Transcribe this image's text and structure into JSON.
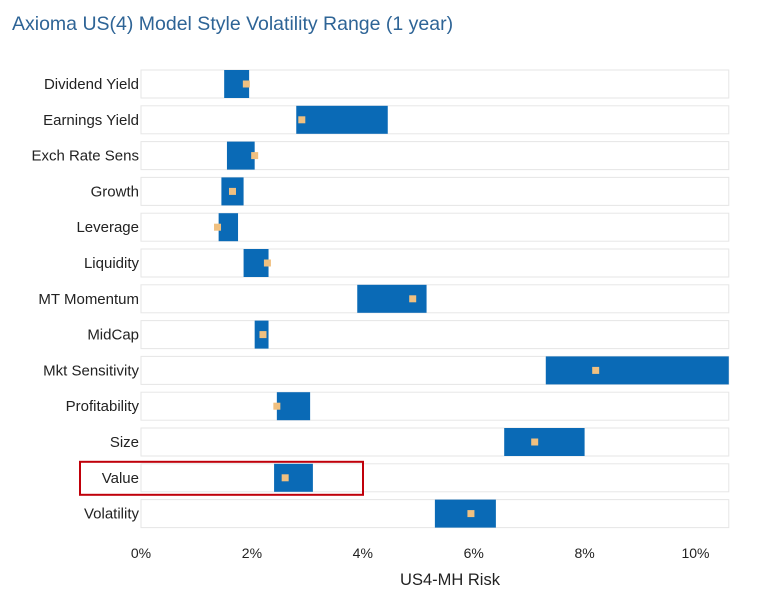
{
  "title": "Axioma US(4) Model Style Volatility Range (1 year)",
  "chart_data": {
    "type": "bar",
    "title": "Axioma US(4) Model Style Volatility Range (1 year)",
    "xlabel": "US4-MH Risk",
    "ylabel": "",
    "xlim": [
      0,
      10.6
    ],
    "x_ticks": [
      "0%",
      "2%",
      "4%",
      "6%",
      "8%",
      "10%"
    ],
    "x_tick_values": [
      0,
      2,
      4,
      6,
      8,
      10
    ],
    "categories": [
      "Dividend Yield",
      "Earnings Yield",
      "Exch Rate Sens",
      "Growth",
      "Leverage",
      "Liquidity",
      "MT Momentum",
      "MidCap",
      "Mkt Sensitivity",
      "Profitability",
      "Size",
      "Value",
      "Volatility"
    ],
    "series": [
      {
        "values": [
          1.5,
          2.8,
          1.55,
          1.45,
          1.4,
          1.85,
          3.9,
          2.05,
          7.3,
          2.45,
          6.55,
          2.4,
          5.3
        ]
      },
      {
        "values": [
          1.95,
          4.45,
          2.05,
          1.85,
          1.75,
          2.3,
          5.15,
          2.3,
          10.6,
          3.05,
          8.0,
          3.1,
          6.4
        ]
      },
      {
        "values": [
          1.9,
          2.9,
          2.05,
          1.65,
          1.38,
          2.28,
          4.9,
          2.2,
          8.2,
          2.45,
          7.1,
          2.6,
          5.95
        ]
      }
    ],
    "highlighted_category": "Value",
    "colors": {
      "range_bar": "#0a6ab6",
      "current_marker": "#f0c080",
      "row_band": "#ffffff",
      "row_band_border": "#e6e6e6",
      "highlight_box": "#c0000a"
    },
    "grid": false,
    "legend": "none"
  }
}
